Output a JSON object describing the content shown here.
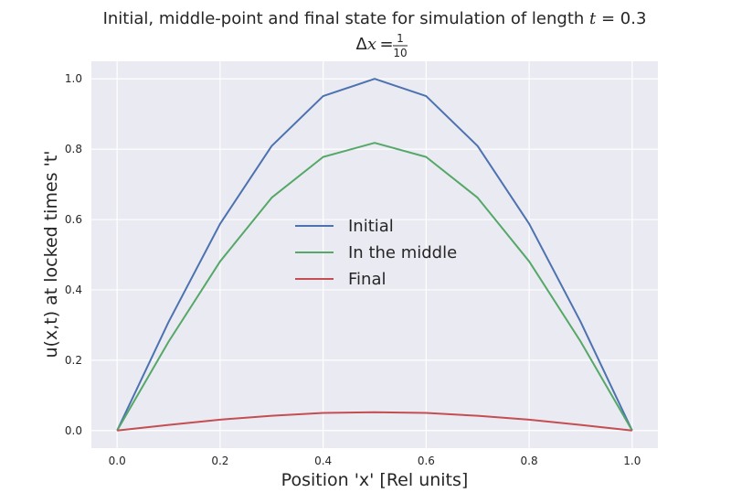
{
  "chart_data": {
    "type": "line",
    "title": "Initial, middle-point and final state for simulation of length t = 0.3",
    "subtitle": "Δx = 1/10",
    "xlabel": "Position 'x' [Rel units]",
    "ylabel": "u(x,t) at locked times 't'",
    "xlim": [
      -0.05,
      1.05
    ],
    "ylim": [
      -0.05,
      1.05
    ],
    "xticks": [
      "0.0",
      "0.2",
      "0.4",
      "0.6",
      "0.8",
      "1.0"
    ],
    "yticks": [
      "0.0",
      "0.2",
      "0.4",
      "0.6",
      "0.8",
      "1.0"
    ],
    "grid": true,
    "legend_position": "center",
    "x": [
      0.0,
      0.1,
      0.2,
      0.3,
      0.4,
      0.5,
      0.6,
      0.7,
      0.8,
      0.9,
      1.0
    ],
    "series": [
      {
        "name": "Initial",
        "color": "#4c72b0",
        "values": [
          0.0,
          0.309,
          0.588,
          0.809,
          0.951,
          1.0,
          0.951,
          0.809,
          0.588,
          0.309,
          0.0
        ]
      },
      {
        "name": "In the middle",
        "color": "#55a868",
        "values": [
          0.0,
          0.253,
          0.481,
          0.662,
          0.778,
          0.818,
          0.778,
          0.662,
          0.481,
          0.253,
          0.0
        ]
      },
      {
        "name": "Final",
        "color": "#c44e52",
        "values": [
          0.0,
          0.016,
          0.031,
          0.042,
          0.05,
          0.052,
          0.05,
          0.042,
          0.031,
          0.016,
          0.0
        ]
      }
    ]
  }
}
